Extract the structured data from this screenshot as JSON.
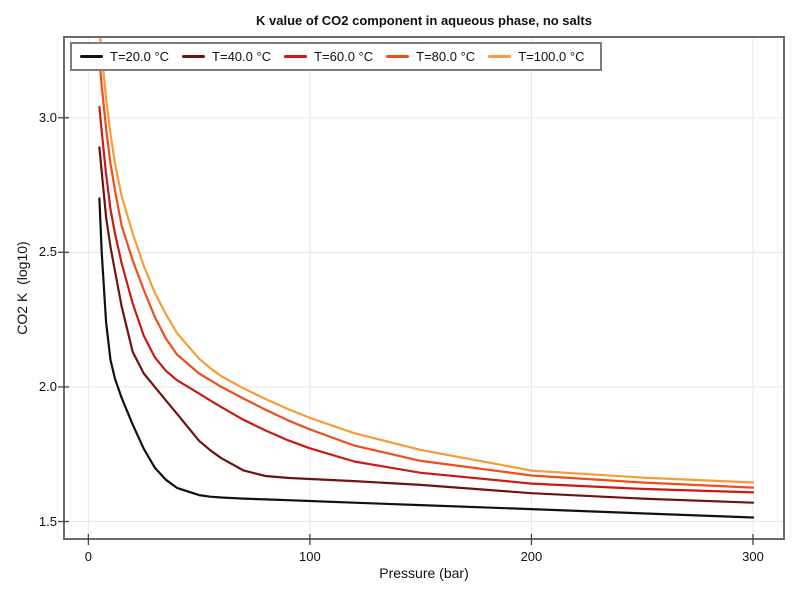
{
  "figure": {
    "background": "#ffffff"
  },
  "chart_data": {
    "type": "line",
    "title": "K value of CO2 component in aqueous phase, no salts",
    "xlabel": "Pressure (bar)",
    "ylabel": "CO2 K  (log10)",
    "xlim": [
      -11,
      314
    ],
    "ylim": [
      1.435,
      3.3
    ],
    "grid": true,
    "legend_position": "top-inside",
    "xticks": {
      "values": [
        0,
        100,
        200,
        300
      ],
      "labels": [
        "0",
        "100",
        "200",
        "300"
      ]
    },
    "yticks": {
      "values": [
        1.5,
        2.0,
        2.5,
        3.0
      ],
      "labels": [
        "1.5",
        "2.0",
        "2.5",
        "3.0"
      ]
    },
    "x_shared": [
      5,
      6,
      8,
      10,
      12,
      15,
      20,
      25,
      30,
      35,
      40,
      50,
      55,
      60,
      70,
      80,
      90,
      100,
      120,
      150,
      200,
      250,
      300
    ],
    "series": [
      {
        "name": "T=20.0 °C",
        "color": "#111111",
        "y": [
          2.7,
          2.5,
          2.24,
          2.1,
          2.03,
          1.96,
          1.86,
          1.77,
          1.7,
          1.655,
          1.625,
          1.598,
          1.592,
          1.589,
          1.585,
          1.582,
          1.579,
          1.576,
          1.57,
          1.561,
          1.546,
          1.53,
          1.515
        ]
      },
      {
        "name": "T=40.0 °C",
        "color": "#6e1410",
        "y": [
          2.89,
          2.8,
          2.63,
          2.52,
          2.43,
          2.3,
          2.13,
          2.05,
          2.0,
          1.95,
          1.9,
          1.8,
          1.765,
          1.735,
          1.69,
          1.669,
          1.662,
          1.658,
          1.65,
          1.636,
          1.605,
          1.585,
          1.57
        ]
      },
      {
        "name": "T=60.0 °C",
        "color": "#cb1a13",
        "y": [
          3.04,
          2.95,
          2.79,
          2.66,
          2.57,
          2.46,
          2.31,
          2.19,
          2.11,
          2.06,
          2.025,
          1.975,
          1.95,
          1.925,
          1.878,
          1.838,
          1.802,
          1.772,
          1.723,
          1.681,
          1.641,
          1.621,
          1.608
        ]
      },
      {
        "name": "T=80.0 °C",
        "color": "#ee4d1c",
        "y": [
          3.22,
          3.12,
          2.96,
          2.83,
          2.73,
          2.6,
          2.47,
          2.36,
          2.26,
          2.18,
          2.12,
          2.05,
          2.025,
          2.0,
          1.957,
          1.915,
          1.876,
          1.842,
          1.782,
          1.725,
          1.671,
          1.645,
          1.626
        ]
      },
      {
        "name": "T=100.0 °C",
        "color": "#f79c38",
        "y": [
          3.33,
          3.24,
          3.07,
          2.94,
          2.83,
          2.71,
          2.57,
          2.45,
          2.35,
          2.27,
          2.2,
          2.105,
          2.07,
          2.04,
          1.995,
          1.955,
          1.918,
          1.885,
          1.828,
          1.766,
          1.689,
          1.663,
          1.645
        ]
      }
    ],
    "styles": {
      "grid_color": "#e8e8e8",
      "frame_color": "#6b6b6b",
      "tick_color": "#444444",
      "curve_width": 2.2
    }
  }
}
